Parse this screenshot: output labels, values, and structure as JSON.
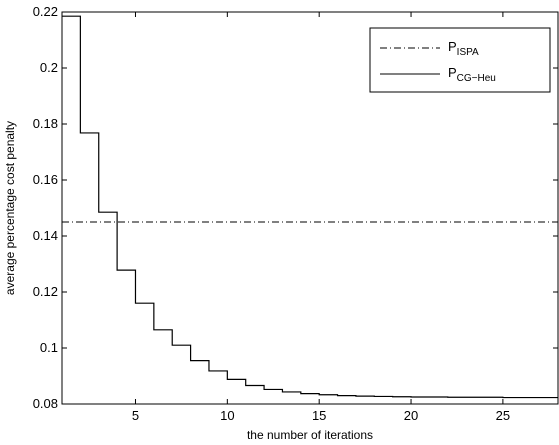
{
  "chart_data": {
    "type": "line",
    "xlabel": "the number of iterations",
    "ylabel": "average percentage cost penalty",
    "xlim": [
      1,
      28
    ],
    "ylim": [
      0.08,
      0.22
    ],
    "x_ticks": [
      5,
      10,
      15,
      20,
      25
    ],
    "x_tick_labels": [
      "5",
      "10",
      "15",
      "20",
      "25"
    ],
    "y_ticks": [
      0.08,
      0.1,
      0.12,
      0.14,
      0.16,
      0.18,
      0.2,
      0.22
    ],
    "y_tick_labels": [
      "0.08",
      "0.1",
      "0.12",
      "0.14",
      "0.16",
      "0.18",
      "0.2",
      "0.22"
    ],
    "grid": false,
    "legend_position": "top-right",
    "series": [
      {
        "name": "P",
        "subscript": "ISPA",
        "style": "dash-dot",
        "color": "#000000",
        "x": [
          1,
          28
        ],
        "y": [
          0.145,
          0.145
        ]
      },
      {
        "name": "P",
        "subscript": "CG−Heu",
        "style": "solid-step",
        "color": "#000000",
        "x": [
          1,
          2,
          3,
          4,
          5,
          6,
          7,
          8,
          9,
          10,
          11,
          12,
          13,
          14,
          15,
          16,
          17,
          18,
          19,
          20,
          21,
          22,
          23,
          24,
          25,
          26,
          27,
          28
        ],
        "y": [
          0.2185,
          0.1768,
          0.1485,
          0.1278,
          0.116,
          0.1065,
          0.101,
          0.0955,
          0.0918,
          0.0888,
          0.0866,
          0.0852,
          0.0843,
          0.0837,
          0.0833,
          0.083,
          0.0828,
          0.0827,
          0.0826,
          0.0825,
          0.0825,
          0.0824,
          0.0824,
          0.0824,
          0.0823,
          0.0823,
          0.0823,
          0.0823
        ]
      }
    ]
  }
}
